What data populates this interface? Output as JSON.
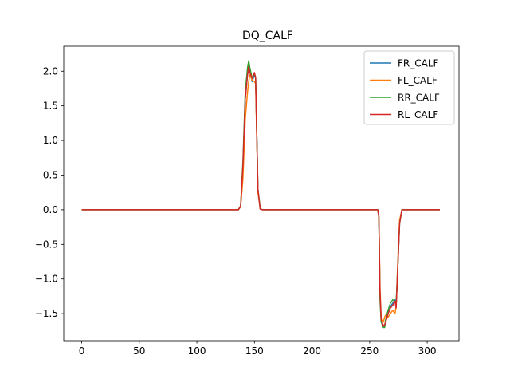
{
  "chart_data": {
    "type": "line",
    "title": "DQ_CALF",
    "xlabel": "",
    "ylabel": "",
    "xlim": [
      -15.6,
      327.6
    ],
    "ylim": [
      -1.89,
      2.36
    ],
    "x_ticks": [
      0,
      50,
      100,
      150,
      200,
      250,
      300
    ],
    "y_ticks": [
      -1.5,
      -1.0,
      -0.5,
      0.0,
      0.5,
      1.0,
      1.5,
      2.0
    ],
    "x_tick_labels": [
      "0",
      "50",
      "100",
      "150",
      "200",
      "250",
      "300"
    ],
    "y_tick_labels": [
      "−1.5",
      "−1.0",
      "−0.5",
      "0.0",
      "0.5",
      "1.0",
      "1.5",
      "2.0"
    ],
    "grid": false,
    "legend_position": "top-right",
    "series": [
      {
        "name": "FR_CALF",
        "color": "#1f77b4",
        "points": [
          [
            0,
            0
          ],
          [
            136,
            0
          ],
          [
            138,
            0.05
          ],
          [
            140,
            0.6
          ],
          [
            142,
            1.6
          ],
          [
            144,
            1.95
          ],
          [
            145,
            2.05
          ],
          [
            146,
            2.0
          ],
          [
            148,
            1.85
          ],
          [
            150,
            1.95
          ],
          [
            151,
            1.9
          ],
          [
            153,
            0.3
          ],
          [
            155,
            0.01
          ],
          [
            157,
            0
          ],
          [
            257,
            0
          ],
          [
            258,
            -0.1
          ],
          [
            259,
            -1.2
          ],
          [
            260,
            -1.6
          ],
          [
            262,
            -1.68
          ],
          [
            263,
            -1.68
          ],
          [
            264,
            -1.6
          ],
          [
            266,
            -1.5
          ],
          [
            268,
            -1.4
          ],
          [
            270,
            -1.35
          ],
          [
            272,
            -1.3
          ],
          [
            273,
            -1.4
          ],
          [
            275,
            -0.6
          ],
          [
            276,
            -0.2
          ],
          [
            278,
            0
          ],
          [
            311,
            0
          ]
        ]
      },
      {
        "name": "FL_CALF",
        "color": "#ff7f0e",
        "points": [
          [
            0,
            0
          ],
          [
            136,
            0
          ],
          [
            138,
            0.04
          ],
          [
            140,
            0.45
          ],
          [
            142,
            1.3
          ],
          [
            144,
            1.7
          ],
          [
            145,
            1.85
          ],
          [
            146,
            1.95
          ],
          [
            148,
            1.87
          ],
          [
            150,
            1.85
          ],
          [
            151,
            1.82
          ],
          [
            153,
            0.25
          ],
          [
            155,
            0.01
          ],
          [
            157,
            0
          ],
          [
            257,
            0
          ],
          [
            258,
            -0.08
          ],
          [
            259,
            -1.1
          ],
          [
            260,
            -1.55
          ],
          [
            262,
            -1.62
          ],
          [
            263,
            -1.55
          ],
          [
            264,
            -1.52
          ],
          [
            266,
            -1.55
          ],
          [
            268,
            -1.5
          ],
          [
            270,
            -1.45
          ],
          [
            272,
            -1.5
          ],
          [
            273,
            -1.4
          ],
          [
            275,
            -0.5
          ],
          [
            276,
            -0.15
          ],
          [
            278,
            0
          ],
          [
            311,
            0
          ]
        ]
      },
      {
        "name": "RR_CALF",
        "color": "#2ca02c",
        "points": [
          [
            0,
            0
          ],
          [
            136,
            0
          ],
          [
            138,
            0.06
          ],
          [
            140,
            0.7
          ],
          [
            142,
            1.7
          ],
          [
            144,
            2.05
          ],
          [
            145,
            2.15
          ],
          [
            146,
            2.05
          ],
          [
            148,
            1.9
          ],
          [
            150,
            1.96
          ],
          [
            151,
            1.92
          ],
          [
            153,
            0.3
          ],
          [
            155,
            0.01
          ],
          [
            157,
            0
          ],
          [
            257,
            0
          ],
          [
            258,
            -0.1
          ],
          [
            259,
            -1.3
          ],
          [
            260,
            -1.62
          ],
          [
            262,
            -1.7
          ],
          [
            263,
            -1.7
          ],
          [
            264,
            -1.58
          ],
          [
            266,
            -1.45
          ],
          [
            268,
            -1.35
          ],
          [
            270,
            -1.3
          ],
          [
            272,
            -1.32
          ],
          [
            273,
            -1.38
          ],
          [
            275,
            -0.6
          ],
          [
            276,
            -0.2
          ],
          [
            278,
            0
          ],
          [
            311,
            0
          ]
        ]
      },
      {
        "name": "RL_CALF",
        "color": "#d62728",
        "points": [
          [
            0,
            0
          ],
          [
            136,
            0
          ],
          [
            138,
            0.05
          ],
          [
            140,
            0.65
          ],
          [
            142,
            1.6
          ],
          [
            144,
            1.95
          ],
          [
            145,
            2.07
          ],
          [
            146,
            1.98
          ],
          [
            148,
            1.9
          ],
          [
            150,
            1.98
          ],
          [
            151,
            1.9
          ],
          [
            153,
            0.3
          ],
          [
            155,
            0.01
          ],
          [
            157,
            0
          ],
          [
            257,
            0
          ],
          [
            258,
            -0.1
          ],
          [
            259,
            -1.2
          ],
          [
            260,
            -1.58
          ],
          [
            262,
            -1.68
          ],
          [
            263,
            -1.66
          ],
          [
            264,
            -1.62
          ],
          [
            266,
            -1.5
          ],
          [
            268,
            -1.42
          ],
          [
            270,
            -1.38
          ],
          [
            272,
            -1.32
          ],
          [
            273,
            -1.42
          ],
          [
            275,
            -0.6
          ],
          [
            276,
            -0.2
          ],
          [
            278,
            0
          ],
          [
            311,
            0
          ]
        ]
      }
    ]
  }
}
